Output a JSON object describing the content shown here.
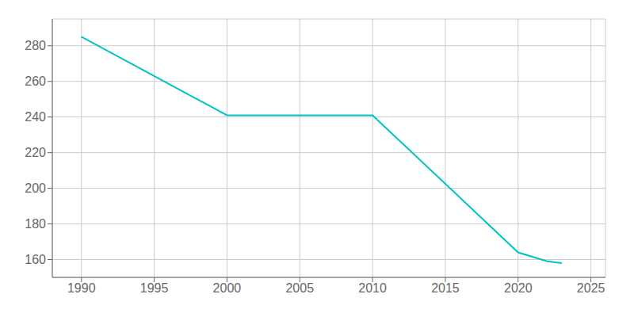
{
  "chart_data": {
    "type": "line",
    "x": [
      1990,
      2000,
      2010,
      2020,
      2022,
      2023
    ],
    "values": [
      285,
      241,
      241,
      164,
      159,
      158
    ],
    "color": "#00C4C4",
    "xlim": [
      1988,
      2026
    ],
    "ylim": [
      150,
      295
    ],
    "xticks": [
      1990,
      1995,
      2000,
      2005,
      2010,
      2015,
      2020,
      2025
    ],
    "yticks": [
      160,
      180,
      200,
      220,
      240,
      260,
      280
    ],
    "grid": true
  }
}
